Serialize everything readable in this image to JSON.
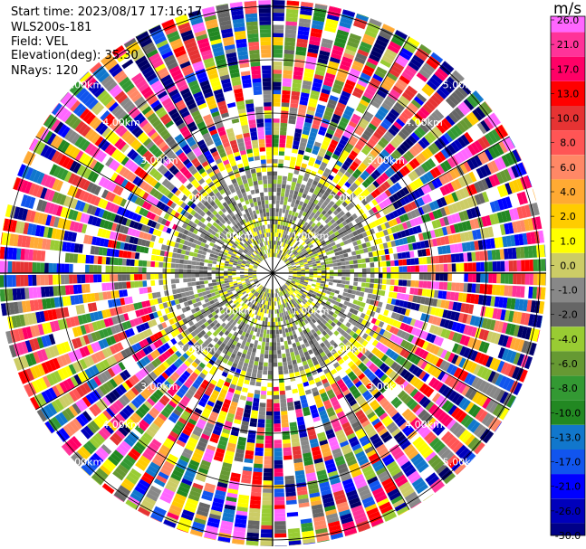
{
  "header": {
    "start_time": "Start time: 2023/08/17 17:16:17",
    "instrument": "WLS200s-181",
    "field": "Field: VEL",
    "elevation": "Elevation(deg): 35.30",
    "nrays": "NRays: 120"
  },
  "chart_data": {
    "type": "heatmap",
    "projection": "polar-ppi",
    "field": "VEL",
    "units": "m/s",
    "nrays": 120,
    "elevation_deg": 35.3,
    "range_ring_labels": [
      "1.00km",
      "2.00km",
      "3.00km",
      "4.00km",
      "5.00km"
    ],
    "colorbar": {
      "units": "m/s",
      "ticks": [
        "26.0",
        "21.0",
        "17.0",
        "13.0",
        "10.0",
        "8.0",
        "6.0",
        "4.0",
        "2.0",
        "1.0",
        "0.0",
        "-1.0",
        "-2.0",
        "-4.0",
        "-6.0",
        "-8.0",
        "-10.0",
        "-13.0",
        "-17.0",
        "-21.0",
        "-26.0",
        "-30.0"
      ],
      "colors": [
        "#ff66ff",
        "#ff3399",
        "#ff0066",
        "#ff0000",
        "#e63333",
        "#ff5555",
        "#ff8866",
        "#ffaa33",
        "#ffcc00",
        "#ffff00",
        "#cccc66",
        "#888888",
        "#666666",
        "#99cc33",
        "#669933",
        "#339933",
        "#228822",
        "#1177cc",
        "#1155ee",
        "#0000ff",
        "#0000bb",
        "#000088",
        "#000066"
      ]
    },
    "grid": true
  }
}
